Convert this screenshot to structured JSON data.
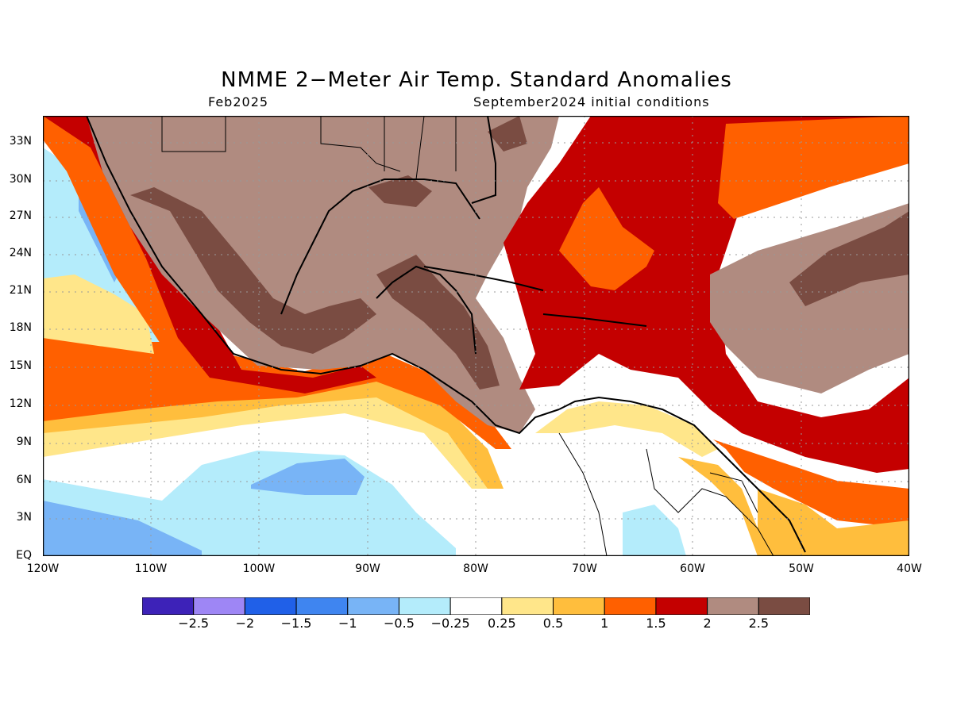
{
  "header": {
    "title": "NMME 2−Meter Air Temp. Standard Anomalies",
    "subtitle_left": "Feb2025",
    "subtitle_right": "September2024 initial conditions"
  },
  "map": {
    "lat_labels": [
      "33N",
      "30N",
      "27N",
      "24N",
      "21N",
      "18N",
      "15N",
      "12N",
      "9N",
      "6N",
      "3N",
      "EQ"
    ],
    "lon_labels": [
      "120W",
      "110W",
      "100W",
      "90W",
      "80W",
      "70W",
      "60W",
      "50W",
      "40W"
    ],
    "region": "Mexico, Central America, Caribbean and northern South America"
  },
  "colorbar": {
    "colors": [
      "#3d22b8",
      "#9e86f5",
      "#2060e8",
      "#3f85f0",
      "#78b4f6",
      "#b4ecfb",
      "#ffffff",
      "#ffe68a",
      "#ffbe3d",
      "#ff6000",
      "#c40000",
      "#b08b80",
      "#7a4c42"
    ],
    "labels": [
      "−2.5",
      "−2",
      "−1.5",
      "−1",
      "−0.5",
      "−0.25",
      "0.25",
      "0.5",
      "1",
      "1.5",
      "2",
      "2.5"
    ]
  }
}
